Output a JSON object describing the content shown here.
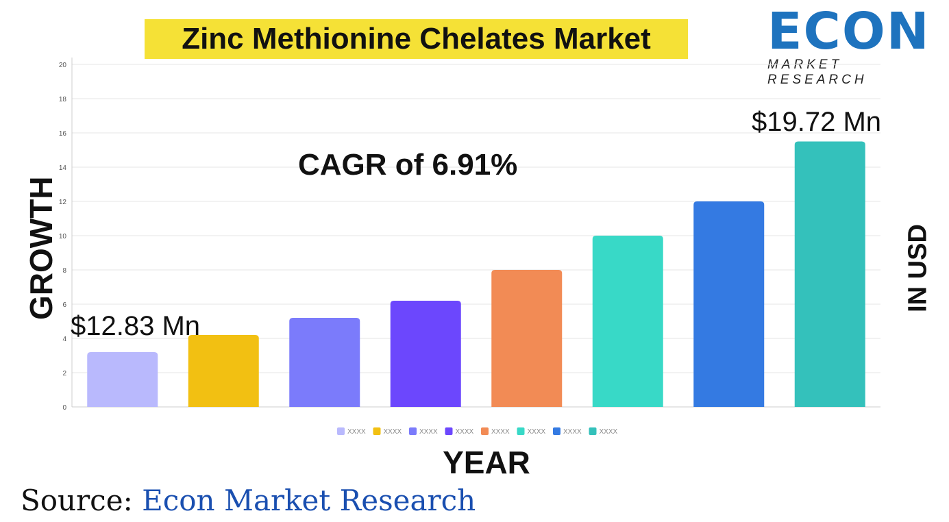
{
  "title": "Zinc Methionine Chelates Market",
  "logo": {
    "text": "ECON",
    "subtext": "MARKET RESEARCH"
  },
  "source": {
    "label": "Source:",
    "value": "Econ Market Research"
  },
  "chart_data": {
    "type": "bar",
    "title": "Zinc Methionine Chelates Market",
    "xlabel": "YEAR",
    "ylabel": "GROWTH",
    "right_label": "IN USD",
    "ylim": [
      0,
      20
    ],
    "yticks": [
      0,
      2,
      4,
      6,
      8,
      10,
      12,
      14,
      16,
      18,
      20
    ],
    "grid": true,
    "legend_placement": "bottom",
    "categories": [
      "XXXX",
      "XXXX",
      "XXXX",
      "XXXX",
      "XXXX",
      "XXXX",
      "XXXX",
      "XXXX"
    ],
    "values": [
      3.2,
      4.2,
      5.2,
      6.2,
      8,
      10,
      12,
      15.5
    ],
    "colors": [
      "#b9b9fd",
      "#f2c012",
      "#7b7bfb",
      "#6c47fd",
      "#f28b55",
      "#38d9c7",
      "#347ae2",
      "#34c1bb"
    ],
    "annotations": {
      "start": "$12.83 Mn",
      "end": "$19.72 Mn",
      "cagr": "CAGR of 6.91%"
    }
  }
}
